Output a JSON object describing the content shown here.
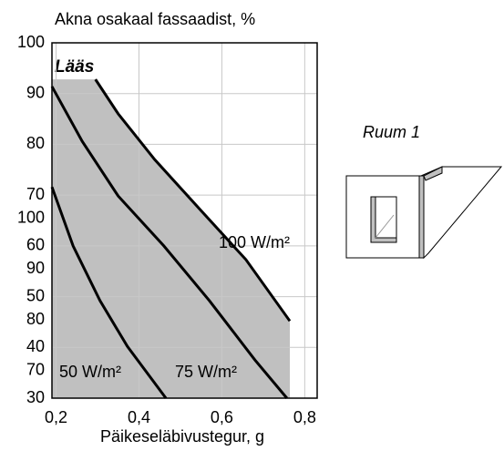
{
  "chart_data": {
    "type": "line",
    "title": "Akna osakaal fassaadist, %",
    "x_label": "Päikeseläbivustegur, g",
    "annotation": "Lääs",
    "side_label": "Ruum 1",
    "xlim": [
      0.19,
      0.83
    ],
    "ylim": [
      30,
      100
    ],
    "xticks": [
      {
        "value": 0.2,
        "label": "0,2"
      },
      {
        "value": 0.4,
        "label": "0,4"
      },
      {
        "value": 0.6,
        "label": "0,6"
      },
      {
        "value": 0.8,
        "label": "0,8"
      }
    ],
    "yticks": [
      30,
      40,
      50,
      60,
      70,
      80,
      90,
      100
    ],
    "y2lim": [
      64.6,
      134.6
    ],
    "y2ticks": [
      70,
      80,
      90,
      100
    ],
    "grid": true,
    "shaded_region": {
      "color": "#c0c0c0",
      "x": [
        0.19,
        0.295,
        0.35,
        0.438,
        0.548,
        0.658,
        0.764,
        0.764,
        0.19
      ],
      "values": [
        92.8,
        92.8,
        86.0,
        77.0,
        67.1,
        57.3,
        45.2,
        30,
        30
      ]
    },
    "series": [
      {
        "name": "100 W/m²",
        "color": "#000000",
        "x": [
          0.295,
          0.35,
          0.438,
          0.548,
          0.658,
          0.764
        ],
        "values": [
          92.8,
          86.0,
          77.0,
          67.1,
          57.3,
          45.2
        ]
      },
      {
        "name": "75 W/m²",
        "color": "#000000",
        "x": [
          0.19,
          0.263,
          0.35,
          0.46,
          0.57,
          0.68,
          0.757
        ],
        "values": [
          91.4,
          80.6,
          69.8,
          60.0,
          49.2,
          37.5,
          30
        ]
      },
      {
        "name": "50 W/m²",
        "color": "#000000",
        "x": [
          0.19,
          0.241,
          0.306,
          0.372,
          0.465
        ],
        "values": [
          71.6,
          60.0,
          49.2,
          40.2,
          30
        ]
      }
    ]
  }
}
